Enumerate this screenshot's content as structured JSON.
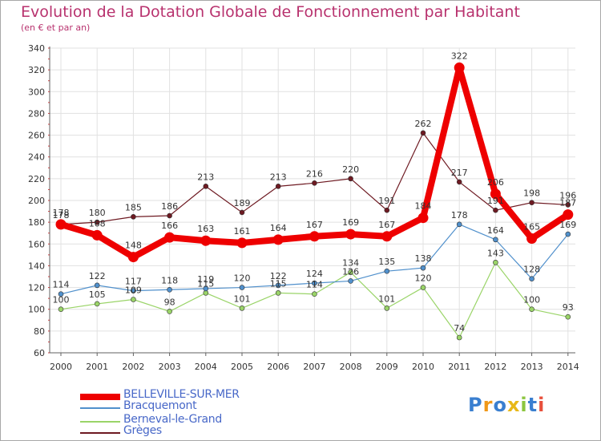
{
  "title": "Evolution de la Dotation Globale de Fonctionnement par Habitant",
  "subtitle": "(en € et par an)",
  "colors": {
    "background": "#ffffff",
    "plot_background": "#ffffff",
    "grid": "#e1e1e1",
    "axis": "#606060",
    "title": "#b8326e",
    "legend_text": "#4868c8",
    "y_tick_text": "#333333",
    "x_tick_text": "#333333"
  },
  "logo": {
    "letters": [
      {
        "char": "P",
        "color": "#3a7fd0"
      },
      {
        "char": "r",
        "color": "#f09818"
      },
      {
        "char": "o",
        "color": "#3a7fd0"
      },
      {
        "char": "x",
        "color": "#e8b818"
      },
      {
        "char": "i",
        "color": "#8cc63f"
      },
      {
        "char": "t",
        "color": "#3a7fd0"
      },
      {
        "char": "i",
        "color": "#e8503c"
      }
    ]
  },
  "chart_data": {
    "type": "line",
    "x": [
      "2000",
      "2001",
      "2002",
      "2003",
      "2004",
      "2005",
      "2006",
      "2007",
      "2008",
      "2009",
      "2010",
      "2011",
      "2012",
      "2013",
      "2014"
    ],
    "yticks": [
      60,
      80,
      100,
      120,
      140,
      160,
      180,
      200,
      220,
      240,
      260,
      280,
      300,
      320,
      340
    ],
    "ylim": [
      60,
      340
    ],
    "grid": true,
    "legend_position": "bottom-left",
    "series": [
      {
        "name": "Grèges",
        "color": "#6e1a22",
        "line_width": 1.2,
        "marker": "small",
        "values": [
          178,
          180,
          185,
          186,
          213,
          189,
          213,
          216,
          220,
          191,
          262,
          217,
          191,
          198,
          196
        ],
        "labels": [
          "178",
          "180",
          "185",
          "186",
          "213",
          "189",
          "213",
          "216",
          "220",
          "191",
          "262",
          "217",
          "191",
          "198",
          "196"
        ]
      },
      {
        "name": "Berneval-le-Grand",
        "color": "#9ad468",
        "line_width": 1.2,
        "marker": "small",
        "values": [
          100,
          105,
          109,
          98,
          115,
          101,
          115,
          114,
          134,
          101,
          120,
          74,
          143,
          100,
          93
        ],
        "labels": [
          "100",
          "105",
          "109",
          "98",
          "115",
          "101",
          "115",
          "114",
          "134",
          "101",
          "120",
          "74",
          "143",
          "100",
          "93"
        ]
      },
      {
        "name": "Bracquemont",
        "color": "#5090cc",
        "line_width": 1.2,
        "marker": "small",
        "values": [
          114,
          122,
          117,
          118,
          119,
          120,
          122,
          124,
          126,
          135,
          138,
          178,
          164,
          128,
          169
        ],
        "labels": [
          "114",
          "122",
          "117",
          "118",
          "119",
          "120",
          "122",
          "124",
          "126",
          "135",
          "138",
          "178",
          "164",
          "128",
          "169"
        ]
      },
      {
        "name": "BELLEVILLE-SUR-MER",
        "color": "#ee0000",
        "line_width": 8,
        "marker": "large",
        "values": [
          178,
          168,
          148,
          166,
          163,
          161,
          164,
          167,
          169,
          167,
          184,
          322,
          206,
          165,
          187
        ],
        "labels": [
          "178",
          "168",
          "148",
          "166",
          "163",
          "161",
          "164",
          "167",
          "169",
          "167",
          "184",
          "322",
          "206",
          "165",
          "187"
        ]
      }
    ],
    "legend_order": [
      "BELLEVILLE-SUR-MER",
      "Bracquemont",
      "Berneval-le-Grand",
      "Grèges"
    ]
  }
}
